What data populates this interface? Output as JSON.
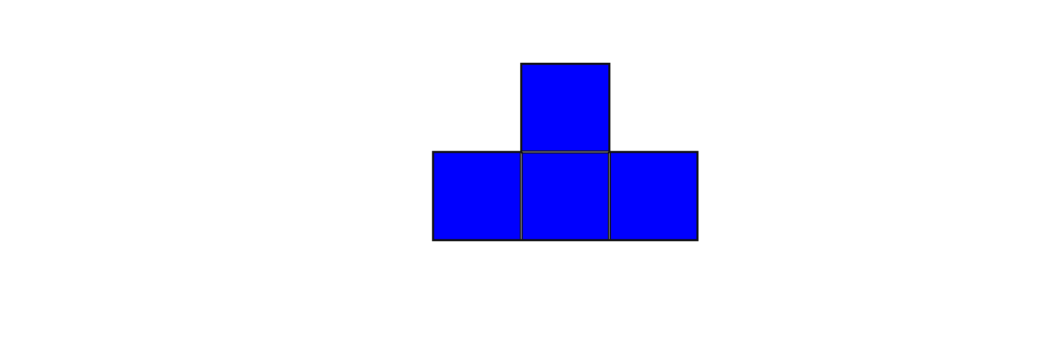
{
  "shape": {
    "fill_color": "#0000ff",
    "stroke_color": "#111111",
    "seam_color": "#6f6f80",
    "cells": [
      {
        "id": "top",
        "row": 0,
        "col": 1
      },
      {
        "id": "bottom-left",
        "row": 1,
        "col": 0
      },
      {
        "id": "bottom-center",
        "row": 1,
        "col": 1
      },
      {
        "id": "bottom-right",
        "row": 1,
        "col": 2
      }
    ]
  }
}
